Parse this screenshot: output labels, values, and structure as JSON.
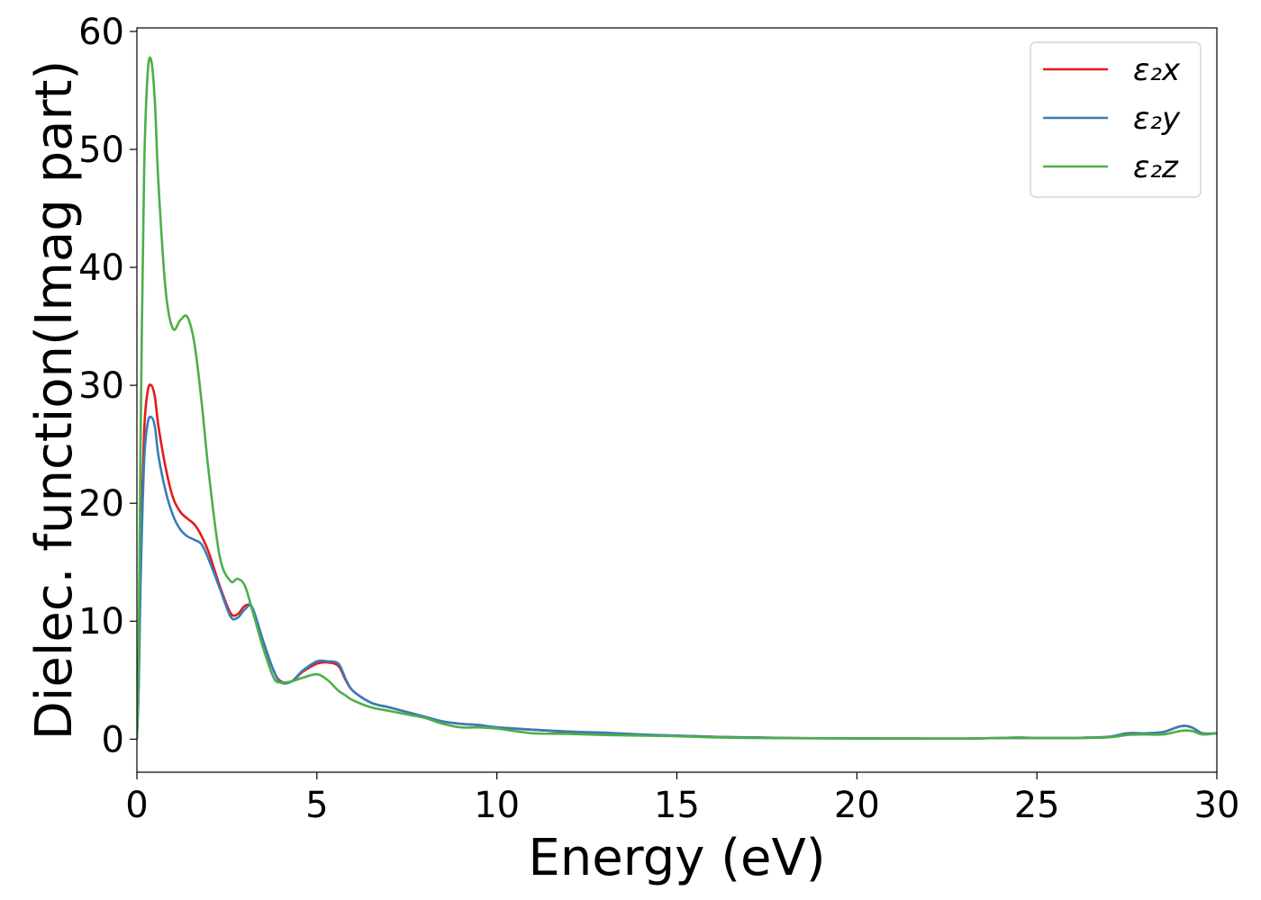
{
  "chart_data": {
    "type": "line",
    "xlabel": "Energy (eV)",
    "ylabel": "Dielec. function(Imag part)",
    "xlim": [
      0,
      30
    ],
    "ylim": [
      -2.8,
      60.3
    ],
    "xticks": [
      0,
      5,
      10,
      15,
      20,
      25,
      30
    ],
    "yticks": [
      0,
      10,
      20,
      30,
      40,
      50,
      60
    ],
    "grid": false,
    "legend_position": "top-right",
    "series": [
      {
        "name": "ε₂x",
        "color": "#e41a1c",
        "x": [
          0,
          0.05,
          0.1,
          0.2,
          0.3,
          0.4,
          0.5,
          0.6,
          0.8,
          1.0,
          1.2,
          1.4,
          1.6,
          1.8,
          2.0,
          2.3,
          2.6,
          2.8,
          3.0,
          3.2,
          3.5,
          3.8,
          4.0,
          4.3,
          4.6,
          5.0,
          5.3,
          5.6,
          5.8,
          6.0,
          6.5,
          7.0,
          7.5,
          8.0,
          8.5,
          9.0,
          9.5,
          10.0,
          11.0,
          12.0,
          13.0,
          14.0,
          15.0,
          16.0,
          17.0,
          18.0,
          19.0,
          20.0,
          21.0,
          22.0,
          23.0,
          24.0,
          24.5,
          25.0,
          25.5,
          26.0,
          27.0,
          27.5,
          28.0,
          28.5,
          29.0,
          29.3,
          29.6,
          30.0
        ],
        "y": [
          0,
          5,
          15,
          26,
          29.5,
          30,
          29,
          26.5,
          23,
          20.5,
          19.3,
          18.7,
          18.2,
          17.2,
          15.8,
          13.0,
          10.7,
          10.6,
          11.3,
          11.1,
          8.3,
          5.8,
          4.9,
          4.9,
          5.7,
          6.4,
          6.5,
          6.2,
          5.0,
          4.1,
          3.1,
          2.7,
          2.3,
          1.9,
          1.5,
          1.3,
          1.2,
          1.0,
          0.8,
          0.6,
          0.5,
          0.35,
          0.3,
          0.2,
          0.15,
          0.1,
          0.08,
          0.07,
          0.06,
          0.05,
          0.05,
          0.1,
          0.1,
          0.1,
          0.1,
          0.1,
          0.2,
          0.5,
          0.5,
          0.6,
          1.1,
          1.0,
          0.5,
          0.5
        ]
      },
      {
        "name": "ε₂y",
        "color": "#377eb8",
        "x": [
          0,
          0.05,
          0.1,
          0.2,
          0.3,
          0.4,
          0.5,
          0.6,
          0.8,
          1.0,
          1.2,
          1.4,
          1.6,
          1.8,
          2.0,
          2.3,
          2.6,
          2.8,
          3.0,
          3.2,
          3.5,
          3.8,
          4.0,
          4.3,
          4.6,
          5.0,
          5.3,
          5.6,
          5.8,
          6.0,
          6.5,
          7.0,
          7.5,
          8.0,
          8.5,
          9.0,
          9.5,
          10.0,
          11.0,
          12.0,
          13.0,
          14.0,
          15.0,
          16.0,
          17.0,
          18.0,
          19.0,
          20.0,
          21.0,
          22.0,
          23.0,
          24.0,
          24.5,
          25.0,
          25.5,
          26.0,
          27.0,
          27.5,
          28.0,
          28.5,
          29.0,
          29.3,
          29.6,
          30.0
        ],
        "y": [
          0,
          4.5,
          13,
          23.5,
          26.8,
          27.3,
          26.5,
          24,
          21,
          19,
          17.8,
          17.2,
          16.9,
          16.5,
          15.2,
          12.8,
          10.4,
          10.3,
          11.0,
          11.2,
          8.4,
          5.8,
          4.8,
          4.9,
          5.8,
          6.6,
          6.6,
          6.4,
          5.1,
          4.1,
          3.1,
          2.7,
          2.3,
          1.9,
          1.5,
          1.3,
          1.2,
          1.0,
          0.8,
          0.65,
          0.55,
          0.4,
          0.3,
          0.2,
          0.15,
          0.1,
          0.08,
          0.07,
          0.06,
          0.05,
          0.05,
          0.1,
          0.1,
          0.1,
          0.1,
          0.1,
          0.2,
          0.5,
          0.5,
          0.6,
          1.1,
          1.0,
          0.5,
          0.5
        ]
      },
      {
        "name": "ε₂z",
        "color": "#4daf4a",
        "x": [
          0,
          0.05,
          0.1,
          0.2,
          0.3,
          0.4,
          0.5,
          0.6,
          0.8,
          1.0,
          1.2,
          1.4,
          1.6,
          1.8,
          2.0,
          2.3,
          2.6,
          2.8,
          3.0,
          3.2,
          3.5,
          3.8,
          4.0,
          4.3,
          4.6,
          5.0,
          5.3,
          5.6,
          5.8,
          6.0,
          6.5,
          7.0,
          7.5,
          8.0,
          8.5,
          9.0,
          9.5,
          10.0,
          11.0,
          12.0,
          13.0,
          14.0,
          15.0,
          16.0,
          17.0,
          18.0,
          19.0,
          20.0,
          21.0,
          22.0,
          23.0,
          24.0,
          24.5,
          25.0,
          25.5,
          26.0,
          27.0,
          27.5,
          28.0,
          28.5,
          29.0,
          29.3,
          29.6,
          30.0
        ],
        "y": [
          0,
          8,
          25,
          48,
          56.5,
          57.5,
          54,
          47,
          38,
          34.8,
          35.5,
          35.8,
          33.5,
          28.5,
          22.5,
          15.5,
          13.4,
          13.6,
          13.0,
          11.0,
          7.8,
          5.2,
          4.8,
          4.9,
          5.2,
          5.5,
          5.0,
          4.1,
          3.7,
          3.3,
          2.7,
          2.4,
          2.1,
          1.8,
          1.3,
          1.0,
          1.0,
          0.9,
          0.5,
          0.45,
          0.35,
          0.3,
          0.25,
          0.15,
          0.1,
          0.08,
          0.07,
          0.06,
          0.05,
          0.05,
          0.05,
          0.1,
          0.15,
          0.1,
          0.1,
          0.1,
          0.15,
          0.35,
          0.4,
          0.4,
          0.7,
          0.7,
          0.4,
          0.5
        ]
      }
    ]
  }
}
